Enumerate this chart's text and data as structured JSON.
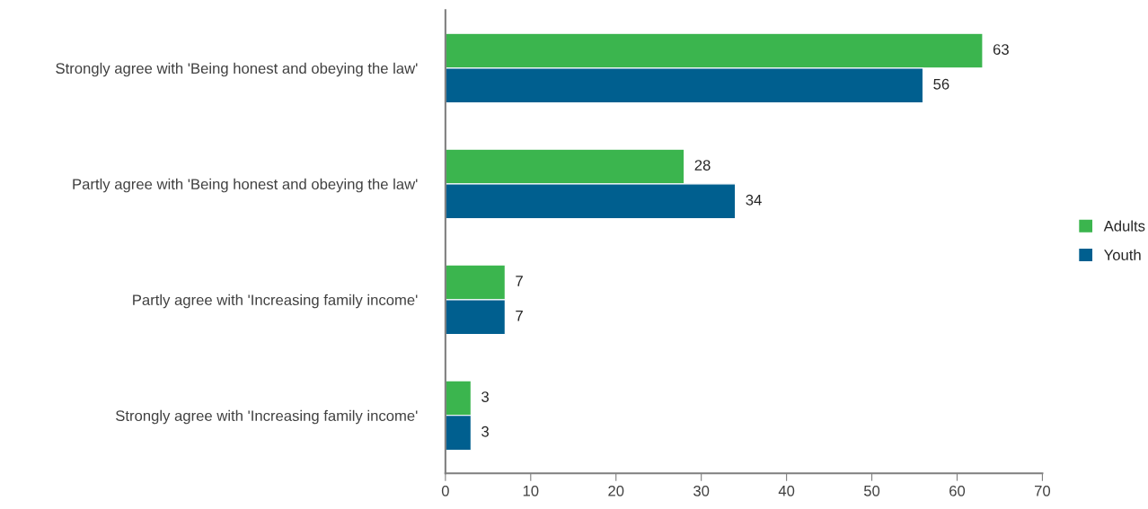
{
  "chart_data": {
    "type": "bar",
    "orientation": "horizontal",
    "categories": [
      "Strongly agree with 'Being honest and obeying the law'",
      "Partly agree with 'Being honest and obeying the law'",
      "Partly agree with 'Increasing family income'",
      "Strongly agree with 'Increasing family income'"
    ],
    "series": [
      {
        "name": "Adults",
        "color": "#3bb54e",
        "values": [
          63,
          28,
          7,
          3
        ]
      },
      {
        "name": "Youth",
        "color": "#005f8f",
        "values": [
          56,
          34,
          7,
          3
        ]
      }
    ],
    "xlim": [
      0,
      70
    ],
    "xticks": [
      0,
      10,
      20,
      30,
      40,
      50,
      60,
      70
    ],
    "data_labels": true,
    "grid": false,
    "legend": "right"
  }
}
